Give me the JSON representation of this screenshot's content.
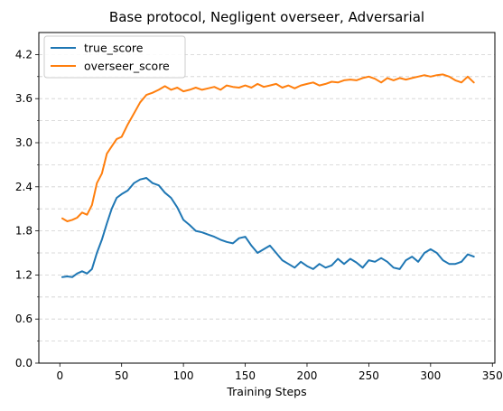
{
  "chart_data": {
    "type": "line",
    "title": "Base protocol, Negligent overseer, Adversarial",
    "xlabel": "Training Steps",
    "ylabel": "",
    "xlim": [
      -17,
      352
    ],
    "ylim": [
      0.0,
      4.5
    ],
    "xticks": [
      0,
      50,
      100,
      150,
      200,
      250,
      300,
      350
    ],
    "yticks": [
      0.0,
      0.6,
      1.2,
      1.8,
      2.4,
      3.0,
      3.6,
      4.2
    ],
    "grid": {
      "axis": "y",
      "style": "dashed",
      "minor": true
    },
    "legend": {
      "placement": "upper-left"
    },
    "series": [
      {
        "name": "true_score",
        "color": "#1f77b4",
        "points": [
          [
            2,
            1.17
          ],
          [
            6,
            1.18
          ],
          [
            10,
            1.17
          ],
          [
            14,
            1.22
          ],
          [
            18,
            1.25
          ],
          [
            22,
            1.22
          ],
          [
            26,
            1.28
          ],
          [
            30,
            1.5
          ],
          [
            34,
            1.68
          ],
          [
            38,
            1.9
          ],
          [
            42,
            2.1
          ],
          [
            46,
            2.25
          ],
          [
            50,
            2.3
          ],
          [
            55,
            2.35
          ],
          [
            60,
            2.45
          ],
          [
            65,
            2.5
          ],
          [
            70,
            2.52
          ],
          [
            75,
            2.45
          ],
          [
            80,
            2.42
          ],
          [
            85,
            2.32
          ],
          [
            90,
            2.25
          ],
          [
            95,
            2.12
          ],
          [
            100,
            1.95
          ],
          [
            105,
            1.88
          ],
          [
            110,
            1.8
          ],
          [
            115,
            1.78
          ],
          [
            120,
            1.75
          ],
          [
            125,
            1.72
          ],
          [
            130,
            1.68
          ],
          [
            135,
            1.65
          ],
          [
            140,
            1.63
          ],
          [
            145,
            1.7
          ],
          [
            150,
            1.72
          ],
          [
            155,
            1.6
          ],
          [
            160,
            1.5
          ],
          [
            165,
            1.55
          ],
          [
            170,
            1.6
          ],
          [
            175,
            1.5
          ],
          [
            180,
            1.4
          ],
          [
            185,
            1.35
          ],
          [
            190,
            1.3
          ],
          [
            195,
            1.38
          ],
          [
            200,
            1.32
          ],
          [
            205,
            1.28
          ],
          [
            210,
            1.35
          ],
          [
            215,
            1.3
          ],
          [
            220,
            1.33
          ],
          [
            225,
            1.42
          ],
          [
            230,
            1.35
          ],
          [
            235,
            1.42
          ],
          [
            240,
            1.37
          ],
          [
            245,
            1.3
          ],
          [
            250,
            1.4
          ],
          [
            255,
            1.38
          ],
          [
            260,
            1.43
          ],
          [
            265,
            1.38
          ],
          [
            270,
            1.3
          ],
          [
            275,
            1.28
          ],
          [
            280,
            1.4
          ],
          [
            285,
            1.45
          ],
          [
            290,
            1.38
          ],
          [
            295,
            1.5
          ],
          [
            300,
            1.55
          ],
          [
            305,
            1.5
          ],
          [
            310,
            1.4
          ],
          [
            315,
            1.35
          ],
          [
            320,
            1.35
          ],
          [
            325,
            1.38
          ],
          [
            330,
            1.48
          ],
          [
            335,
            1.45
          ]
        ]
      },
      {
        "name": "overseer_score",
        "color": "#ff7f0e",
        "points": [
          [
            2,
            1.97
          ],
          [
            6,
            1.93
          ],
          [
            10,
            1.95
          ],
          [
            14,
            1.98
          ],
          [
            18,
            2.05
          ],
          [
            22,
            2.02
          ],
          [
            26,
            2.15
          ],
          [
            30,
            2.45
          ],
          [
            34,
            2.58
          ],
          [
            38,
            2.85
          ],
          [
            42,
            2.95
          ],
          [
            46,
            3.05
          ],
          [
            50,
            3.08
          ],
          [
            55,
            3.25
          ],
          [
            60,
            3.4
          ],
          [
            65,
            3.55
          ],
          [
            70,
            3.65
          ],
          [
            75,
            3.68
          ],
          [
            80,
            3.72
          ],
          [
            85,
            3.77
          ],
          [
            90,
            3.72
          ],
          [
            95,
            3.75
          ],
          [
            100,
            3.7
          ],
          [
            105,
            3.72
          ],
          [
            110,
            3.75
          ],
          [
            115,
            3.72
          ],
          [
            120,
            3.74
          ],
          [
            125,
            3.76
          ],
          [
            130,
            3.72
          ],
          [
            135,
            3.78
          ],
          [
            140,
            3.76
          ],
          [
            145,
            3.75
          ],
          [
            150,
            3.78
          ],
          [
            155,
            3.75
          ],
          [
            160,
            3.8
          ],
          [
            165,
            3.76
          ],
          [
            170,
            3.78
          ],
          [
            175,
            3.8
          ],
          [
            180,
            3.75
          ],
          [
            185,
            3.78
          ],
          [
            190,
            3.74
          ],
          [
            195,
            3.78
          ],
          [
            200,
            3.8
          ],
          [
            205,
            3.82
          ],
          [
            210,
            3.78
          ],
          [
            215,
            3.8
          ],
          [
            220,
            3.83
          ],
          [
            225,
            3.82
          ],
          [
            230,
            3.85
          ],
          [
            235,
            3.86
          ],
          [
            240,
            3.85
          ],
          [
            245,
            3.88
          ],
          [
            250,
            3.9
          ],
          [
            255,
            3.87
          ],
          [
            260,
            3.82
          ],
          [
            265,
            3.88
          ],
          [
            270,
            3.85
          ],
          [
            275,
            3.88
          ],
          [
            280,
            3.86
          ],
          [
            285,
            3.88
          ],
          [
            290,
            3.9
          ],
          [
            295,
            3.92
          ],
          [
            300,
            3.9
          ],
          [
            305,
            3.92
          ],
          [
            310,
            3.93
          ],
          [
            315,
            3.9
          ],
          [
            320,
            3.85
          ],
          [
            325,
            3.82
          ],
          [
            330,
            3.9
          ],
          [
            335,
            3.82
          ]
        ]
      }
    ]
  }
}
